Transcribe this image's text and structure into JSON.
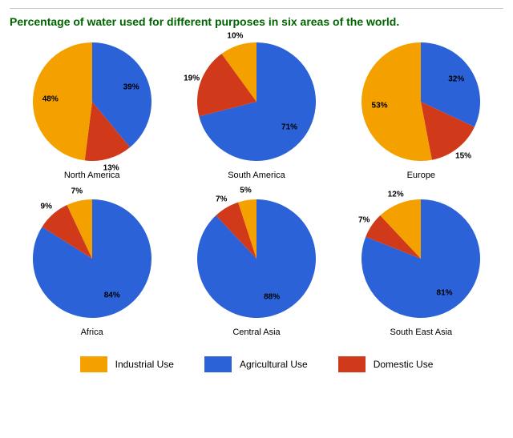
{
  "title": "Percentage of water used for different purposes in six areas of the world.",
  "colors": {
    "industrial": "#f4a100",
    "agricultural": "#2c62d8",
    "domestic": "#d03a1a",
    "title": "#006400",
    "label": "#000000",
    "background": "#ffffff",
    "rule": "#cccccc"
  },
  "pie": {
    "radius": 74,
    "label_radius_inside": 52,
    "label_radius_outside": 86
  },
  "charts": [
    {
      "region": "North America",
      "slices": [
        {
          "key": "industrial",
          "value": 48,
          "label": "48%"
        },
        {
          "key": "agricultural",
          "value": 39,
          "label": "39%"
        },
        {
          "key": "domestic",
          "value": 13,
          "label": "13%"
        }
      ]
    },
    {
      "region": "South America",
      "slices": [
        {
          "key": "industrial",
          "value": 10,
          "label": "10%"
        },
        {
          "key": "agricultural",
          "value": 71,
          "label": "71%"
        },
        {
          "key": "domestic",
          "value": 19,
          "label": "19%"
        }
      ]
    },
    {
      "region": "Europe",
      "slices": [
        {
          "key": "industrial",
          "value": 53,
          "label": "53%"
        },
        {
          "key": "agricultural",
          "value": 32,
          "label": "32%"
        },
        {
          "key": "domestic",
          "value": 15,
          "label": "15%"
        }
      ]
    },
    {
      "region": "Africa",
      "slices": [
        {
          "key": "industrial",
          "value": 7,
          "label": "7%"
        },
        {
          "key": "agricultural",
          "value": 84,
          "label": "84%"
        },
        {
          "key": "domestic",
          "value": 9,
          "label": "9%"
        }
      ]
    },
    {
      "region": "Central Asia",
      "slices": [
        {
          "key": "industrial",
          "value": 5,
          "label": "5%"
        },
        {
          "key": "agricultural",
          "value": 88,
          "label": "88%"
        },
        {
          "key": "domestic",
          "value": 7,
          "label": "7%"
        }
      ]
    },
    {
      "region": "South East Asia",
      "slices": [
        {
          "key": "industrial",
          "value": 12,
          "label": "12%"
        },
        {
          "key": "agricultural",
          "value": 81,
          "label": "81%"
        },
        {
          "key": "domestic",
          "value": 7,
          "label": "7%"
        }
      ]
    }
  ],
  "legend": {
    "items": [
      {
        "key": "industrial",
        "label": "Industrial Use"
      },
      {
        "key": "agricultural",
        "label": "Agricultural Use"
      },
      {
        "key": "domestic",
        "label": "Domestic Use"
      }
    ]
  },
  "label_fontsize": 10,
  "region_fontsize": 11,
  "legend_fontsize": 12,
  "title_fontsize": 14
}
